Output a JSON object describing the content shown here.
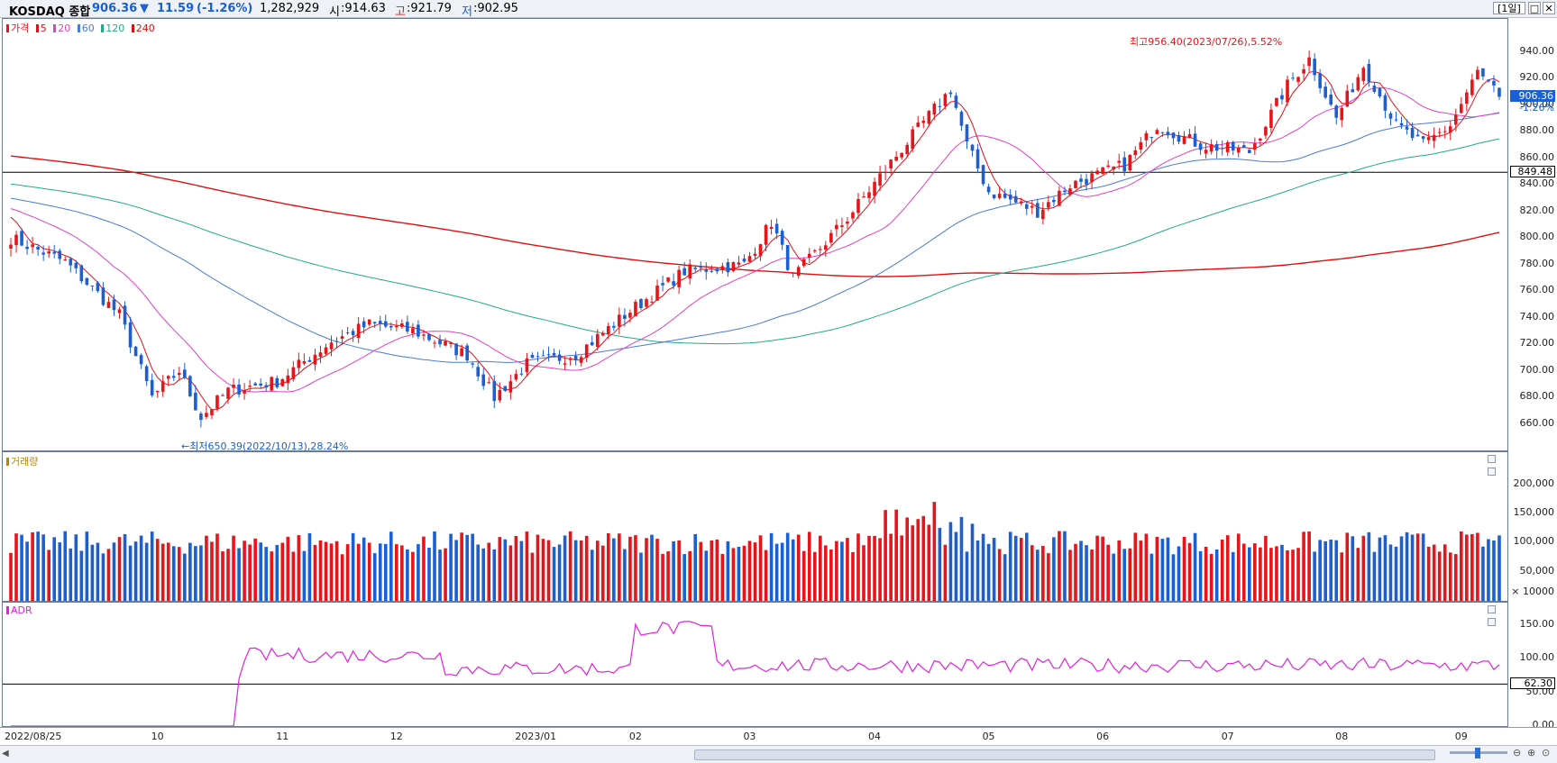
{
  "header": {
    "name": "KOSDAQ 종합",
    "price": "906.36",
    "arrow": "▼",
    "change": "11.59",
    "change_pct": "(-1.26%)",
    "volume": "1,282,929",
    "open_label": "시",
    "open": ":914.63",
    "high_label": "고",
    "high": ":921.79",
    "low_label": "저",
    "low": ":902.95",
    "period": "[1일]",
    "restore_icon": "restore-icon",
    "close_icon": "close-icon"
  },
  "colors": {
    "up": "#e8141b",
    "down": "#1b5fd6",
    "ma5": "#e0101a",
    "ma20": "#e040c8",
    "ma60": "#4a7bd4",
    "ma120": "#22aa88",
    "ma240": "#e01010",
    "adr": "#e020e0"
  },
  "price_panel": {
    "legend": [
      {
        "label": "가격",
        "color": "#e8141b"
      },
      {
        "label": "5",
        "color": "#e0101a"
      },
      {
        "label": "20",
        "color": "#e040c8"
      },
      {
        "label": "60",
        "color": "#4a7bd4"
      },
      {
        "label": "120",
        "color": "#22aa88"
      },
      {
        "label": "240",
        "color": "#e01010"
      }
    ],
    "y_ticks": [
      "940.00",
      "920.00",
      "900.00",
      "880.00",
      "860.00",
      "840.00",
      "820.00",
      "800.00",
      "780.00",
      "760.00",
      "740.00",
      "720.00",
      "700.00",
      "680.00",
      "660.00"
    ],
    "current_price": "906.36",
    "current_change": "-1.26%",
    "ref_line": "849.48",
    "high_annotation": "최고956.40(2023/07/26),5.52%",
    "low_annotation": "←최저650.39(2022/10/13),28.24%"
  },
  "volume_panel": {
    "legend": "거래량",
    "y_ticks": [
      "200,000",
      "150,000",
      "100,000",
      "50,000"
    ],
    "unit": "× 10000"
  },
  "adr_panel": {
    "legend": "ADR",
    "y_ticks": [
      "150.00",
      "100.00",
      "50.00",
      "0.00"
    ],
    "ref_line": "62.30"
  },
  "x_axis": {
    "labels": [
      "2022/08/25",
      "10",
      "11",
      "12",
      "2023/01",
      "02",
      "03",
      "04",
      "05",
      "06",
      "07",
      "08",
      "09"
    ]
  },
  "chart_data": {
    "type": "candlestick",
    "y_range": [
      640,
      965
    ],
    "ma_periods": [
      5,
      20,
      60,
      120,
      240
    ],
    "high": {
      "value": 956.4,
      "date": "2023/07/26"
    },
    "low": {
      "value": 650.39,
      "date": "2022/10/13"
    },
    "last_close": 906.36,
    "horizontal_line": 849.48,
    "close_path": [
      {
        "date": "2022/08/25",
        "close": 800
      },
      {
        "date": "2022/09/08",
        "close": 782
      },
      {
        "date": "2022/09/22",
        "close": 742
      },
      {
        "date": "2022/09/30",
        "close": 680
      },
      {
        "date": "2022/10/07",
        "close": 700
      },
      {
        "date": "2022/10/13",
        "close": 665
      },
      {
        "date": "2022/10/20",
        "close": 685
      },
      {
        "date": "2022/11/01",
        "close": 692
      },
      {
        "date": "2022/11/15",
        "close": 722
      },
      {
        "date": "2022/11/25",
        "close": 735
      },
      {
        "date": "2022/12/07",
        "close": 730
      },
      {
        "date": "2022/12/20",
        "close": 712
      },
      {
        "date": "2022/12/28",
        "close": 680
      },
      {
        "date": "2023/01/05",
        "close": 705
      },
      {
        "date": "2023/01/18",
        "close": 712
      },
      {
        "date": "2023/02/01",
        "close": 745
      },
      {
        "date": "2023/02/15",
        "close": 775
      },
      {
        "date": "2023/03/02",
        "close": 780
      },
      {
        "date": "2023/03/09",
        "close": 812
      },
      {
        "date": "2023/03/15",
        "close": 770
      },
      {
        "date": "2023/03/28",
        "close": 815
      },
      {
        "date": "2023/04/10",
        "close": 862
      },
      {
        "date": "2023/04/24",
        "close": 912
      },
      {
        "date": "2023/04/28",
        "close": 870
      },
      {
        "date": "2023/05/04",
        "close": 835
      },
      {
        "date": "2023/05/17",
        "close": 820
      },
      {
        "date": "2023/05/25",
        "close": 840
      },
      {
        "date": "2023/06/08",
        "close": 855
      },
      {
        "date": "2023/06/16",
        "close": 885
      },
      {
        "date": "2023/06/28",
        "close": 870
      },
      {
        "date": "2023/07/10",
        "close": 865
      },
      {
        "date": "2023/07/20",
        "close": 915
      },
      {
        "date": "2023/07/26",
        "close": 935
      },
      {
        "date": "2023/08/02",
        "close": 890
      },
      {
        "date": "2023/08/09",
        "close": 930
      },
      {
        "date": "2023/08/17",
        "close": 885
      },
      {
        "date": "2023/08/24",
        "close": 870
      },
      {
        "date": "2023/08/31",
        "close": 885
      },
      {
        "date": "2023/09/07",
        "close": 925
      },
      {
        "date": "2023/09/12",
        "close": 906.36
      }
    ],
    "volume_range": [
      0,
      240000
    ],
    "volume_unit": 10000,
    "adr_range": [
      0,
      175
    ],
    "adr_ref": 62.3
  }
}
